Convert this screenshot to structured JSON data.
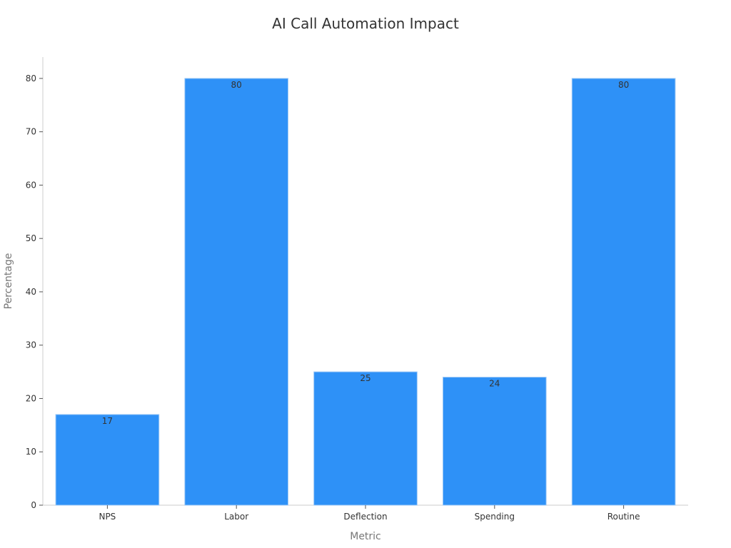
{
  "chart_data": {
    "type": "bar",
    "title": "AI Call Automation Impact",
    "xlabel": "Metric",
    "ylabel": "Percentage",
    "categories": [
      "NPS",
      "Labor",
      "Deflection",
      "Spending",
      "Routine"
    ],
    "values": [
      17,
      80,
      25,
      24,
      80
    ],
    "ylim": [
      0,
      84
    ],
    "yticks": [
      0,
      10,
      20,
      30,
      40,
      50,
      60,
      70,
      80
    ],
    "grid": false,
    "legend": "none",
    "bar_color": "#2e91f7"
  }
}
